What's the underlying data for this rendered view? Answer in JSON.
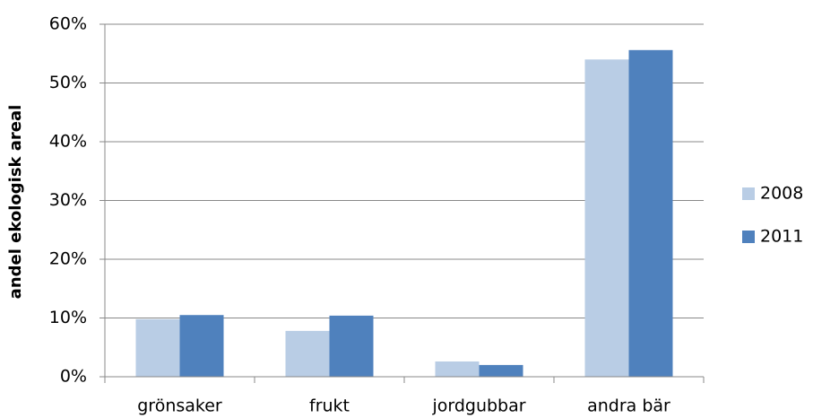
{
  "chart_data": {
    "type": "bar",
    "y_label": "andel ekologisk areal",
    "categories": [
      "grönsaker",
      "frukt",
      "jordgubbar",
      "andra bär"
    ],
    "series": [
      {
        "name": "2008",
        "color": "#b9cde5",
        "values": [
          9.8,
          7.8,
          2.6,
          54.0
        ]
      },
      {
        "name": "2011",
        "color": "#4f81bd",
        "values": [
          10.5,
          10.4,
          2.0,
          55.6
        ]
      }
    ],
    "ylim": [
      0,
      60
    ],
    "yticks": [
      {
        "value": 0,
        "label": "0%"
      },
      {
        "value": 10,
        "label": "10%"
      },
      {
        "value": 20,
        "label": "20%"
      },
      {
        "value": 30,
        "label": "30%"
      },
      {
        "value": 40,
        "label": "40%"
      },
      {
        "value": 50,
        "label": "50%"
      },
      {
        "value": 60,
        "label": "60%"
      }
    ],
    "grid": true,
    "legend": "right"
  }
}
